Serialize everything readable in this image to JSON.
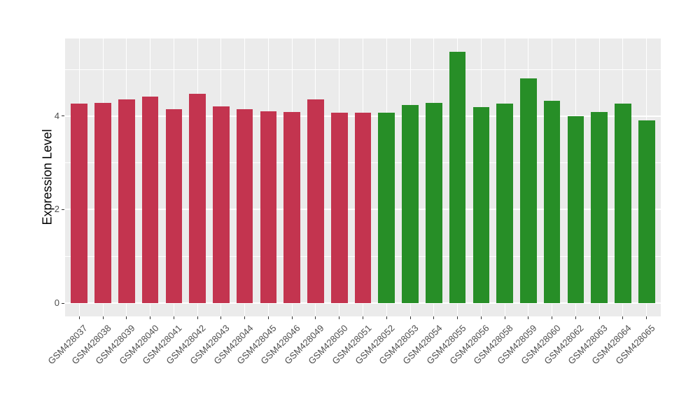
{
  "chart_data": {
    "type": "bar",
    "title": "",
    "xlabel": "",
    "ylabel": "Expression Level",
    "ylim": [
      0,
      5.66
    ],
    "yticks": [
      0,
      2,
      4
    ],
    "minor_yticks": [
      1,
      3,
      5
    ],
    "grid": "horizontal major at 0/2/4 and minor at 1/3/5, vertical major at each category; white on gray panel",
    "legend_position": "none",
    "categories": [
      "GSM428037",
      "GSM428038",
      "GSM428039",
      "GSM428040",
      "GSM428041",
      "GSM428042",
      "GSM428043",
      "GSM428044",
      "GSM428045",
      "GSM428046",
      "GSM428049",
      "GSM428050",
      "GSM428051",
      "GSM428052",
      "GSM428053",
      "GSM428054",
      "GSM428055",
      "GSM428056",
      "GSM428058",
      "GSM428059",
      "GSM428060",
      "GSM428062",
      "GSM428063",
      "GSM428064",
      "GSM428065"
    ],
    "values": [
      4.26,
      4.28,
      4.36,
      4.41,
      4.15,
      4.48,
      4.21,
      4.14,
      4.1,
      4.09,
      4.36,
      4.07,
      4.07,
      4.07,
      4.24,
      4.28,
      5.37,
      4.19,
      4.27,
      4.81,
      4.33,
      4.0,
      4.09,
      4.26,
      3.91
    ],
    "groups": [
      "red",
      "red",
      "red",
      "red",
      "red",
      "red",
      "red",
      "red",
      "red",
      "red",
      "red",
      "red",
      "red",
      "green",
      "green",
      "green",
      "green",
      "green",
      "green",
      "green",
      "green",
      "green",
      "green",
      "green",
      "green"
    ],
    "colors": {
      "red": "#C3344F",
      "green": "#278E27",
      "panel_background": "#EBEBEB",
      "gridline": "#FFFFFF",
      "tick_label": "#4D4D4D",
      "axis_title": "#000000",
      "tick_mark": "#333333"
    }
  }
}
